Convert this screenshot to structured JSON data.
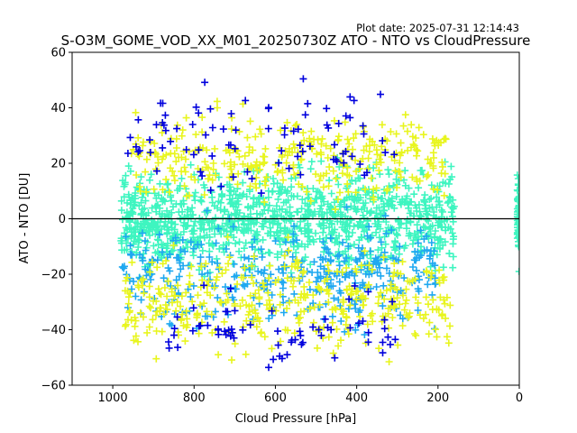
{
  "plot_date": "Plot date: 2025-07-31 12:14:43",
  "chart_data": {
    "type": "scatter",
    "title": "S-O3M_GOME_VOD_XX_M01_20250730Z ATO - NTO vs CloudPressure",
    "xlabel": "Cloud Pressure [hPa]",
    "ylabel": "ATO - NTO [DU]",
    "xlim": [
      1100,
      0
    ],
    "ylim": [
      -60,
      60
    ],
    "x_ticks": [
      1000,
      800,
      600,
      400,
      200,
      0
    ],
    "y_ticks": [
      -60,
      -40,
      -20,
      0,
      20,
      40,
      60
    ],
    "x_tick_labels": [
      "1000",
      "800",
      "600",
      "400",
      "200",
      "0"
    ],
    "y_tick_labels": [
      "−60",
      "−40",
      "−20",
      "0",
      "20",
      "40",
      "60"
    ],
    "reference_line_y": 0,
    "marker": "+",
    "grid": false,
    "series_colors": [
      "#3ef5c0",
      "#1ea8f0",
      "#e8f51e",
      "#0000dd"
    ],
    "point_clouds": [
      {
        "color": "#3ef5c0",
        "x_range": [
          160,
          980
        ],
        "y_center": 0,
        "y_spread": 14,
        "density": 1.0
      },
      {
        "color": "#1ea8f0",
        "x_range": [
          200,
          980
        ],
        "y_center": -20,
        "y_spread": 14,
        "density": 0.35
      },
      {
        "color": "#e8f51e",
        "x_range": [
          170,
          970
        ],
        "y_center": -30,
        "y_spread": 14,
        "density": 0.35
      },
      {
        "color": "#e8f51e",
        "x_range": [
          180,
          960
        ],
        "y_center": 22,
        "y_spread": 12,
        "density": 0.3
      },
      {
        "color": "#0000dd",
        "x_range": [
          300,
          980
        ],
        "y_center": 30,
        "y_spread": 16,
        "density": 0.08
      },
      {
        "color": "#0000dd",
        "x_range": [
          300,
          900
        ],
        "y_center": -40,
        "y_spread": 12,
        "density": 0.06
      },
      {
        "color": "#3ef5c0",
        "x_range": [
          0,
          5
        ],
        "y_center": 0,
        "y_spread": 14,
        "density": 0.05
      }
    ]
  }
}
